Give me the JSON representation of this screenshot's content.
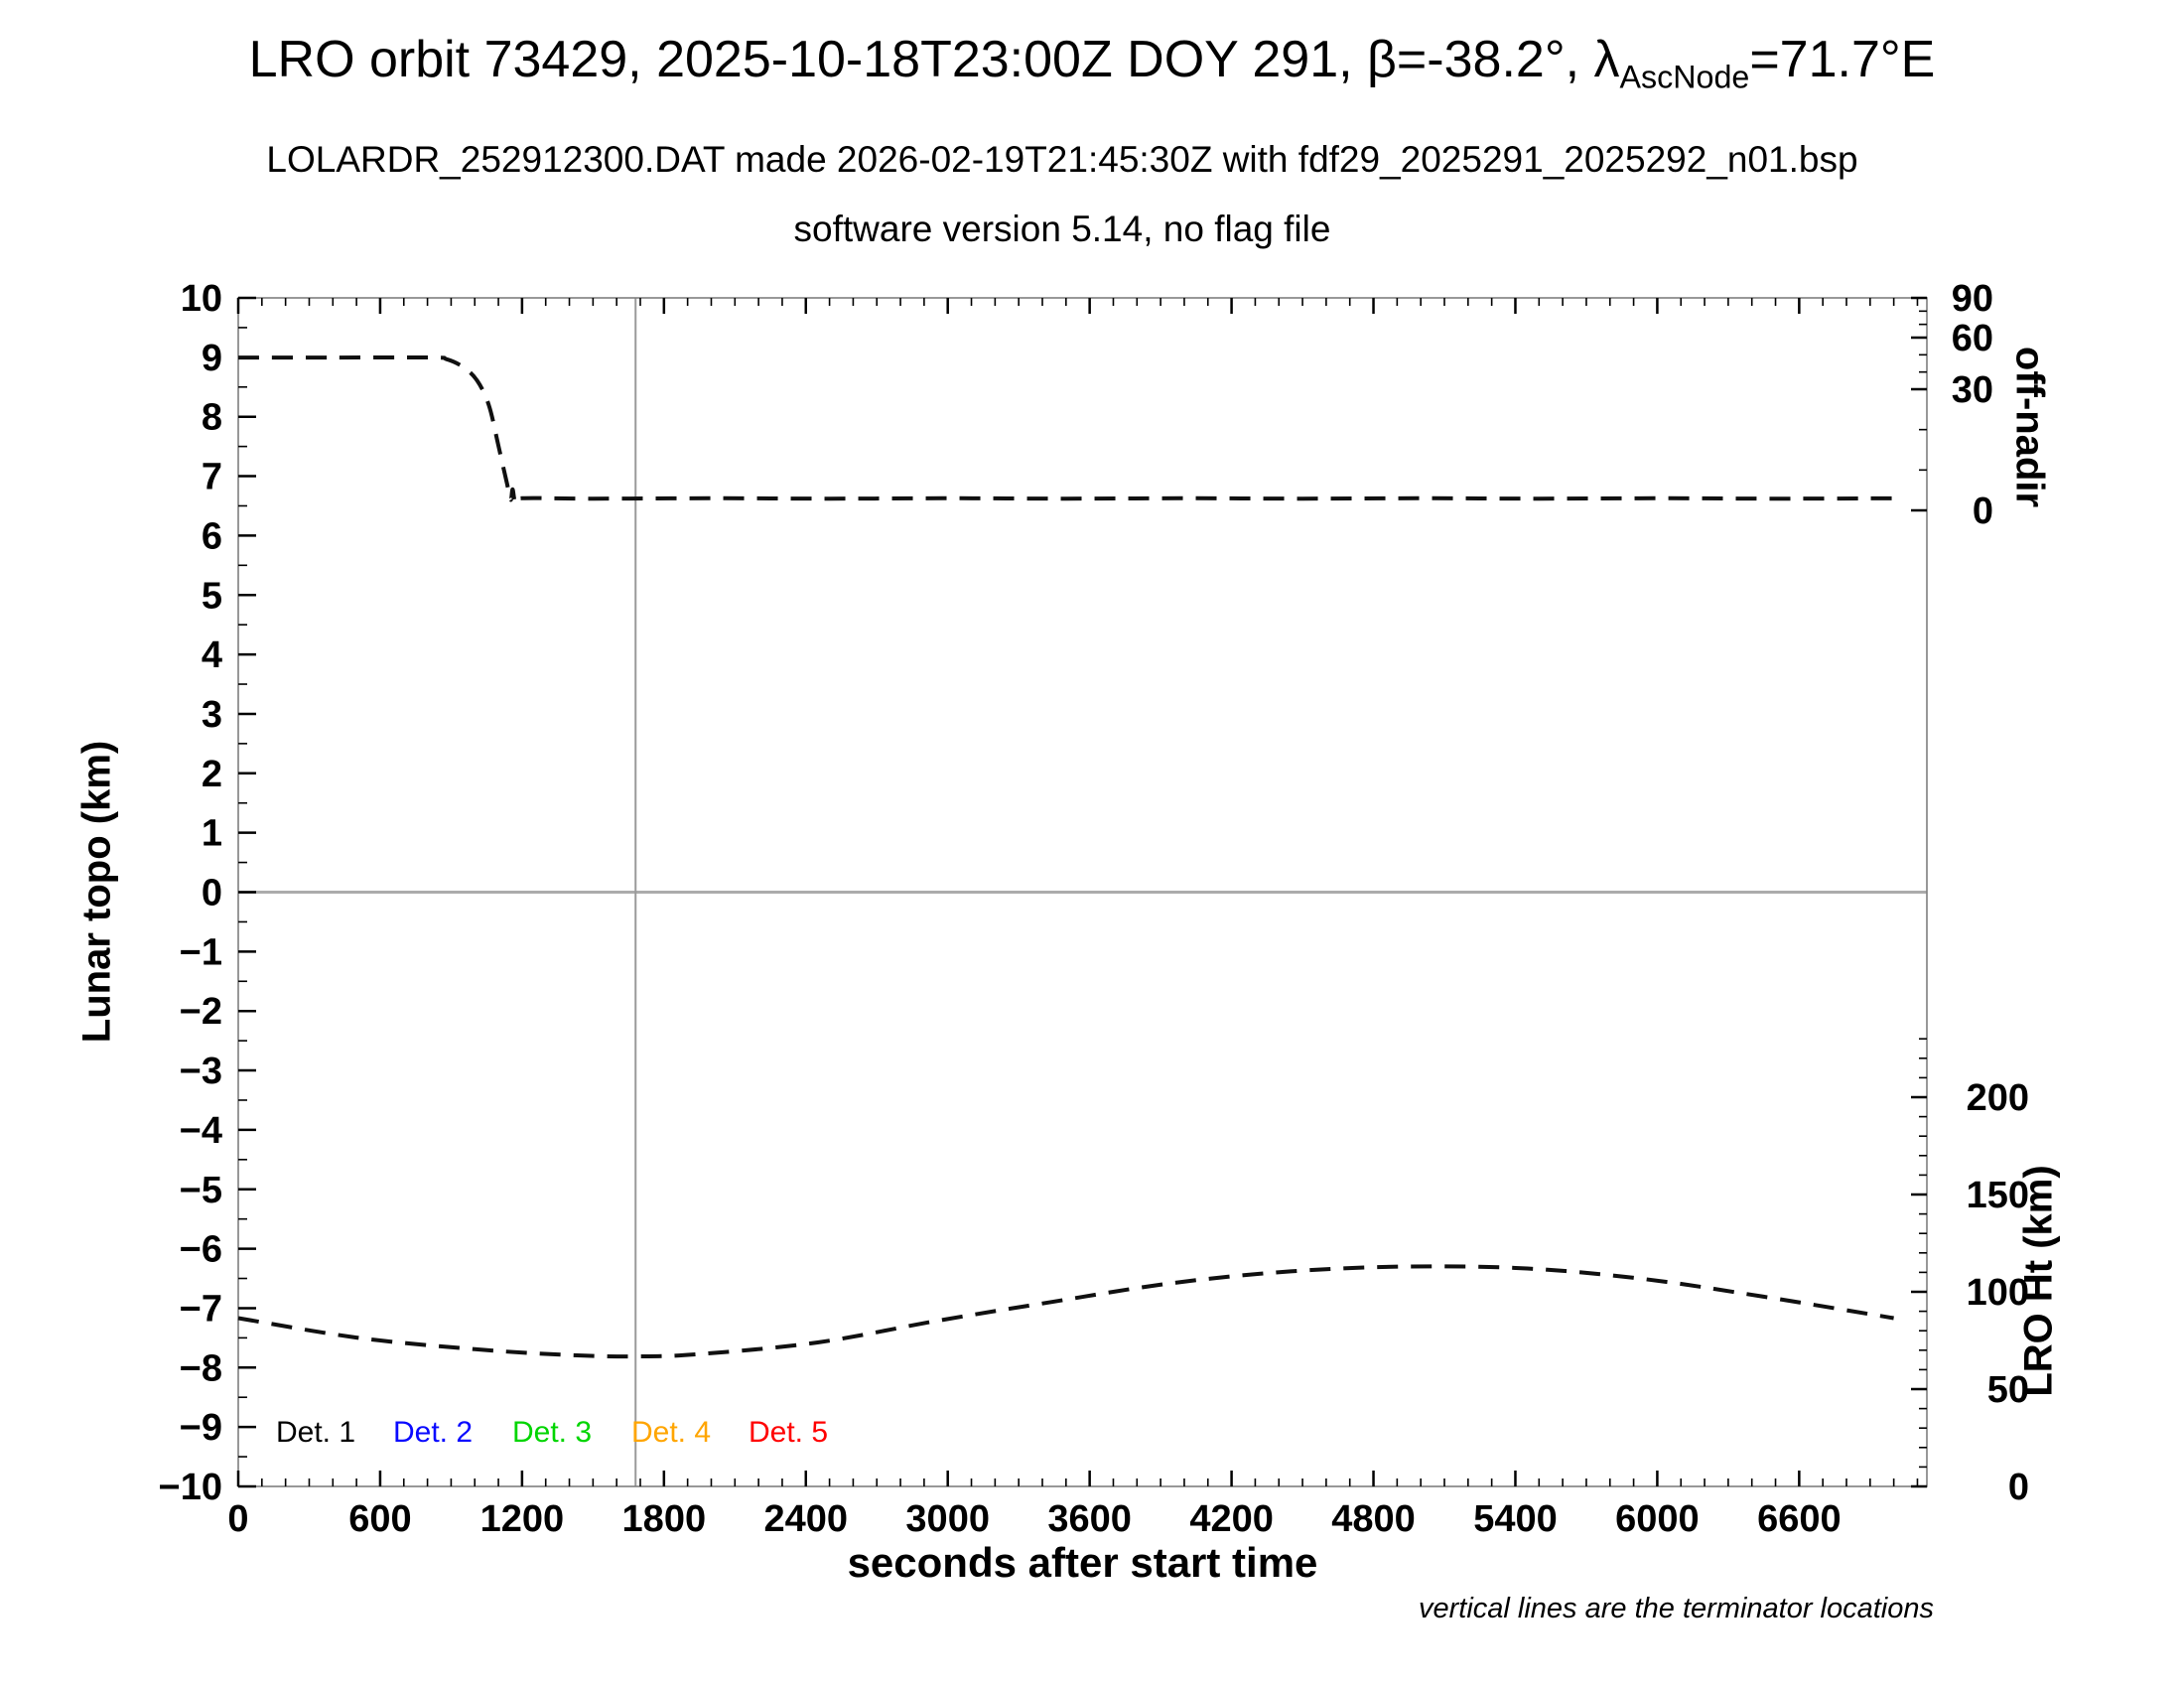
{
  "title": {
    "pre": "LRO orbit 73429, 2025-10-18T23:00Z DOY 291, β=-38.2°, λ",
    "sub": "AscNode",
    "post": "=71.7°E"
  },
  "subtitle_line1": "LOLARDR_252912300.DAT made 2026-02-19T21:45:30Z with fdf29_2025291_2025292_n01.bsp",
  "subtitle_line2": "software version 5.14, no flag file",
  "footnote": "vertical lines are the terminator locations",
  "legend": {
    "items": [
      {
        "label": "Det. 1",
        "color": "#000000"
      },
      {
        "label": "Det. 2",
        "color": "#0a0aff"
      },
      {
        "label": "Det. 3",
        "color": "#00d500"
      },
      {
        "label": "Det. 4",
        "color": "#ffa500"
      },
      {
        "label": "Det. 5",
        "color": "#ff0000"
      }
    ]
  },
  "colors": {
    "curve": "#101010",
    "terminator_line": "#9a9a9a",
    "zero_line": "#ababab",
    "frame": "#7f7f7f",
    "tick": "#000000"
  },
  "chart_data": {
    "type": "line",
    "title": "LRO orbit 73429, 2025-10-18T23:00Z DOY 291, β=-38.2°, λAscNode=71.7°E",
    "xlabel": "seconds after start time",
    "ylabel_left": "Lunar topo (km)",
    "ylabel_right_top": "off-nadir",
    "ylabel_right_bottom": "LRO Ht (km)",
    "x_range_s": [
      0,
      7140
    ],
    "y_left_range_km": [
      -10,
      10
    ],
    "x_ticks": [
      0,
      600,
      1200,
      1800,
      2400,
      3000,
      3600,
      4200,
      4800,
      5400,
      6000,
      6600
    ],
    "x_minor_step_s": 100,
    "y_left_ticks": [
      10,
      9,
      8,
      7,
      6,
      5,
      4,
      3,
      2,
      1,
      0,
      -1,
      -2,
      -3,
      -4,
      -5,
      -6,
      -7,
      -8,
      -9,
      -10
    ],
    "off_nadir_ticks_deg": [
      90,
      60,
      30,
      0
    ],
    "off_nadir_minor_ticks_deg": [
      80,
      70,
      50,
      40,
      20,
      10
    ],
    "lro_ht_ticks_km": [
      200,
      150,
      100,
      50,
      0
    ],
    "lro_ht_minor_step_km": 10,
    "lro_ht_minor_max_km": 230,
    "grid": "horizontal zero line and vertical terminator line only",
    "legend_position": "inside lower-left",
    "terminator_lines_s": [
      1680
    ],
    "series": [
      {
        "name": "off-nadir angle",
        "axis": "right-top",
        "unit": "deg",
        "style": "dashed black",
        "points": [
          [
            0,
            48.4
          ],
          [
            400,
            48.4
          ],
          [
            820,
            48.4
          ],
          [
            880,
            47.5
          ],
          [
            950,
            43.0
          ],
          [
            1010,
            35.0
          ],
          [
            1060,
            26.0
          ],
          [
            1100,
            16.0
          ],
          [
            1135,
            7.0
          ],
          [
            1152,
            2.6
          ],
          [
            1160,
            5.2
          ],
          [
            1172,
            2.0
          ],
          [
            1200,
            3.0
          ],
          [
            1500,
            2.9
          ],
          [
            2000,
            3.0
          ],
          [
            2500,
            2.9
          ],
          [
            3000,
            3.0
          ],
          [
            3500,
            2.9
          ],
          [
            4000,
            3.0
          ],
          [
            4500,
            2.9
          ],
          [
            5000,
            3.0
          ],
          [
            5500,
            2.9
          ],
          [
            6000,
            3.0
          ],
          [
            6500,
            2.9
          ],
          [
            7030,
            3.0
          ]
        ]
      },
      {
        "name": "LRO height",
        "axis": "right-bottom",
        "unit": "km",
        "style": "dashed black",
        "points": [
          [
            0,
            86.5
          ],
          [
            500,
            76.5
          ],
          [
            1000,
            70.5
          ],
          [
            1400,
            67.5
          ],
          [
            1680,
            66.8
          ],
          [
            1950,
            68.0
          ],
          [
            2450,
            74.0
          ],
          [
            2950,
            85.0
          ],
          [
            3450,
            95.0
          ],
          [
            3950,
            104.5
          ],
          [
            4450,
            110.5
          ],
          [
            4950,
            113.0
          ],
          [
            5450,
            112.0
          ],
          [
            5950,
            106.5
          ],
          [
            6450,
            97.5
          ],
          [
            7000,
            86.5
          ]
        ]
      }
    ]
  }
}
